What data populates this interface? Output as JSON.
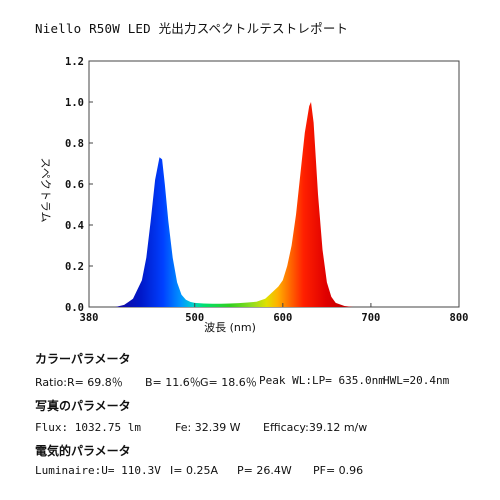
{
  "title": "Niello R50W LED 光出力スペクトルテストレポート",
  "chart_data": {
    "type": "area",
    "xlabel": "波長 (nm)",
    "ylabel": "スペクトラム",
    "xlim": [
      380,
      800
    ],
    "ylim": [
      0,
      1.2
    ],
    "x_ticks": [
      "380",
      "500",
      "600",
      "700",
      "800"
    ],
    "y_ticks": [
      "0.0",
      "0.2",
      "0.4",
      "0.6",
      "0.8",
      "1.0",
      "1.2"
    ],
    "grid": false,
    "series": [
      {
        "x": [
          410,
          420,
          430,
          440,
          445,
          450,
          455,
          460,
          463,
          466,
          470,
          475,
          480,
          485,
          490,
          495,
          500,
          510,
          520,
          530,
          540,
          550,
          560,
          570,
          580,
          585,
          590,
          595,
          600,
          605,
          610,
          615,
          620,
          625,
          630,
          632,
          635,
          640,
          645,
          650,
          655,
          660,
          670,
          680
        ],
        "y": [
          0.0,
          0.01,
          0.04,
          0.13,
          0.24,
          0.42,
          0.62,
          0.73,
          0.72,
          0.6,
          0.42,
          0.24,
          0.12,
          0.06,
          0.035,
          0.025,
          0.02,
          0.017,
          0.016,
          0.016,
          0.017,
          0.019,
          0.022,
          0.026,
          0.04,
          0.06,
          0.08,
          0.1,
          0.13,
          0.2,
          0.3,
          0.45,
          0.65,
          0.85,
          0.98,
          1.0,
          0.9,
          0.55,
          0.28,
          0.12,
          0.05,
          0.02,
          0.005,
          0.0
        ]
      }
    ]
  },
  "color_section": {
    "heading": "カラーパラメータ",
    "ratio": "Ratio:R= 69.8％",
    "b": "B= 11.6％",
    "g": "G= 18.6％",
    "peak": "Peak WL:LP= 635.0nm",
    "hwl": "HWL=20.4nm"
  },
  "photo_section": {
    "heading": "写真のパラメータ",
    "flux": "Flux: 1032.75 lm",
    "fe": "Fe: 32.39 W",
    "efficacy": "Efficacy:39.12 m/w"
  },
  "electrical_section": {
    "heading": "電気的パラメータ",
    "luminaire": "Luminaire:U= 110.3V",
    "current": "I= 0.25A",
    "power": "P= 26.4W",
    "pf": "PF= 0.96"
  }
}
